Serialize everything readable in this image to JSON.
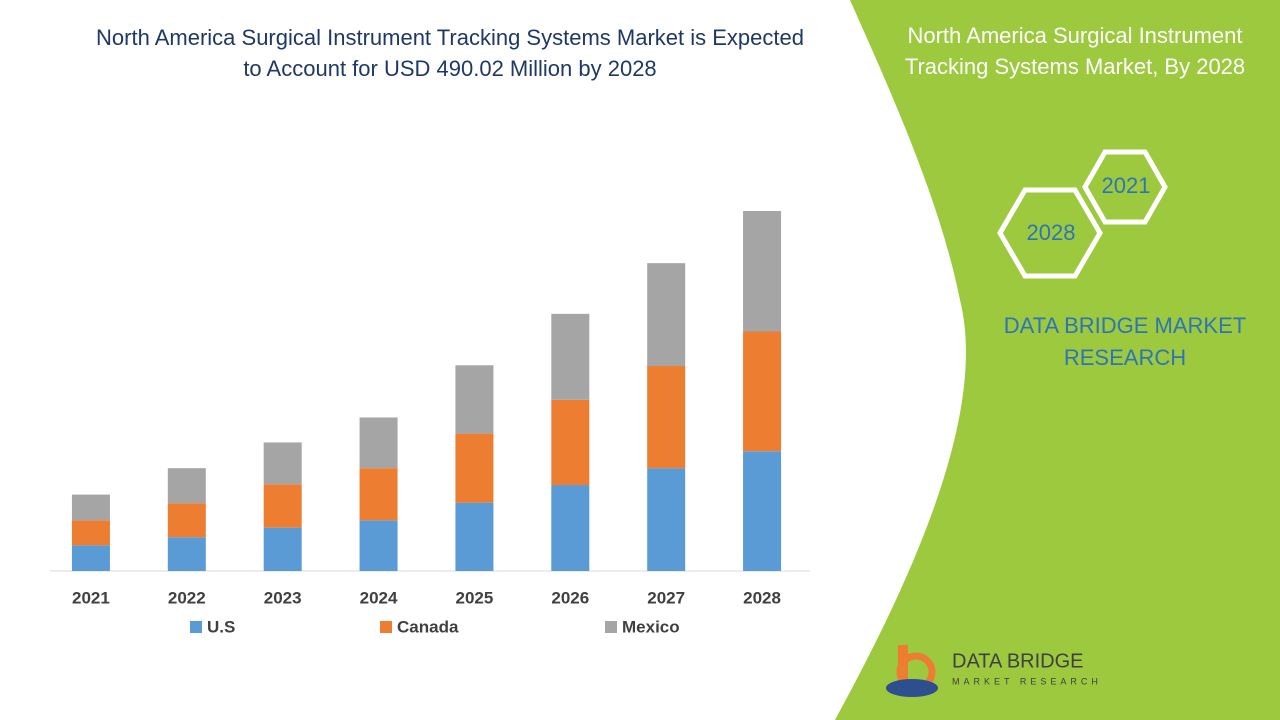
{
  "chart_data": {
    "type": "stacked-bar",
    "title": "North America Surgical Instrument Tracking Systems Market is Expected to Account for USD 490.02 Million by 2028",
    "categories": [
      "2021",
      "2022",
      "2023",
      "2024",
      "2025",
      "2026",
      "2027",
      "2028"
    ],
    "series": [
      {
        "name": "U.S",
        "color": "#5b9bd5",
        "values": [
          35,
          46,
          59,
          69,
          93,
          117,
          140,
          163
        ]
      },
      {
        "name": "Canada",
        "color": "#ed7d31",
        "values": [
          34,
          46,
          59,
          71,
          94,
          116,
          139,
          163
        ]
      },
      {
        "name": "Mexico",
        "color": "#a5a5a5",
        "values": [
          35,
          48,
          57,
          69,
          93,
          117,
          140,
          164
        ]
      }
    ]
  },
  "panel": {
    "title": "North America Surgical Instrument Tracking Systems Market, By 2028",
    "hexagons": [
      "2021",
      "2028"
    ],
    "brand": "DATA BRIDGE MARKET RESEARCH"
  },
  "logo": {
    "name": "DATA BRIDGE",
    "tagline": "MARKET RESEARCH"
  }
}
